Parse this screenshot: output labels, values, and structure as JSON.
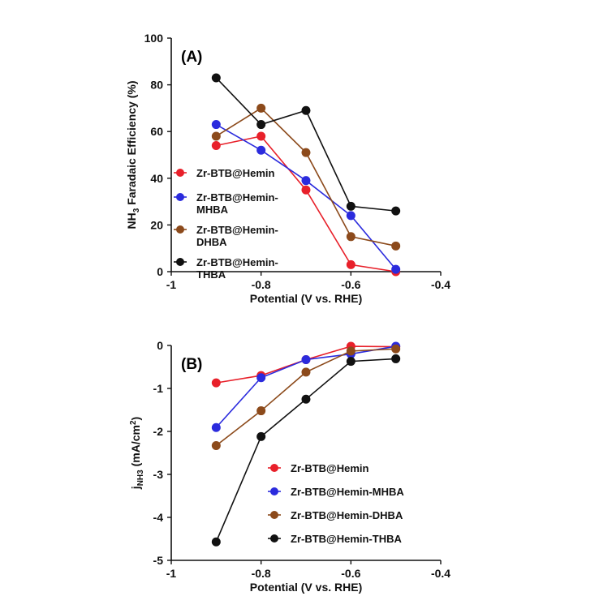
{
  "chart_data": [
    {
      "type": "line",
      "panel_label": "(A)",
      "xlabel": "Potential (V vs. RHE)",
      "ylabel_parts": {
        "pre": "NH",
        "sub": "3",
        "post": " Faradaic Efficiency (%)"
      },
      "xlim": [
        -1,
        -0.4
      ],
      "ylim": [
        0,
        100
      ],
      "xticks": [
        -1,
        -0.8,
        -0.6,
        -0.4
      ],
      "xtick_labels": [
        "-1",
        "-0.8",
        "-0.6",
        "-0.4"
      ],
      "yticks": [
        0,
        20,
        40,
        60,
        80,
        100
      ],
      "ytick_labels": [
        "0",
        "20",
        "40",
        "60",
        "80",
        "100"
      ],
      "legend_position": "left",
      "legend_labels": [
        [
          "Zr-BTB@Hemin"
        ],
        [
          "Zr-BTB@Hemin-",
          "MHBA"
        ],
        [
          "Zr-BTB@Hemin-",
          "DHBA"
        ],
        [
          "Zr-BTB@Hemin-",
          "THBA"
        ]
      ],
      "x": [
        -0.9,
        -0.8,
        -0.7,
        -0.6,
        -0.5
      ],
      "series": [
        {
          "name": "Zr-BTB@Hemin",
          "color": "#e8202a",
          "values": [
            54,
            58,
            35,
            3,
            0
          ]
        },
        {
          "name": "Zr-BTB@Hemin-MHBA",
          "color": "#2b2bdd",
          "values": [
            63,
            52,
            39,
            24,
            1
          ]
        },
        {
          "name": "Zr-BTB@Hemin-DHBA",
          "color": "#8c4a1b",
          "values": [
            58,
            70,
            51,
            15,
            11
          ]
        },
        {
          "name": "Zr-BTB@Hemin-THBA",
          "color": "#111111",
          "values": [
            83,
            63,
            69,
            28,
            26
          ]
        }
      ]
    },
    {
      "type": "line",
      "panel_label": "(B)",
      "xlabel": "Potential (V vs. RHE)",
      "ylabel_parts": {
        "pre": "j",
        "sub": "NH3",
        "post": " (mA/cm",
        "sup": "2",
        "end": ")"
      },
      "xlim": [
        -1,
        -0.4
      ],
      "ylim": [
        -5,
        0
      ],
      "xticks": [
        -1,
        -0.8,
        -0.6,
        -0.4
      ],
      "xtick_labels": [
        "-1",
        "-0.8",
        "-0.6",
        "-0.4"
      ],
      "yticks": [
        -5,
        -4,
        -3,
        -2,
        -1,
        0
      ],
      "ytick_labels": [
        "-5",
        "-4",
        "-3",
        "-2",
        "-1",
        "0"
      ],
      "legend_position": "lower-right",
      "legend_labels": [
        [
          "Zr-BTB@Hemin"
        ],
        [
          "Zr-BTB@Hemin-MHBA"
        ],
        [
          "Zr-BTB@Hemin-DHBA"
        ],
        [
          "Zr-BTB@Hemin-THBA"
        ]
      ],
      "x": [
        -0.9,
        -0.8,
        -0.7,
        -0.6,
        -0.5
      ],
      "series": [
        {
          "name": "Zr-BTB@Hemin",
          "color": "#e8202a",
          "values": [
            -0.87,
            -0.7,
            -0.33,
            -0.02,
            -0.03
          ]
        },
        {
          "name": "Zr-BTB@Hemin-MHBA",
          "color": "#2b2bdd",
          "values": [
            -1.91,
            -0.75,
            -0.33,
            -0.2,
            -0.02
          ]
        },
        {
          "name": "Zr-BTB@Hemin-DHBA",
          "color": "#8c4a1b",
          "values": [
            -2.33,
            -1.52,
            -0.62,
            -0.13,
            -0.08
          ]
        },
        {
          "name": "Zr-BTB@Hemin-THBA",
          "color": "#111111",
          "values": [
            -4.57,
            -2.12,
            -1.25,
            -0.37,
            -0.31
          ]
        }
      ]
    }
  ]
}
